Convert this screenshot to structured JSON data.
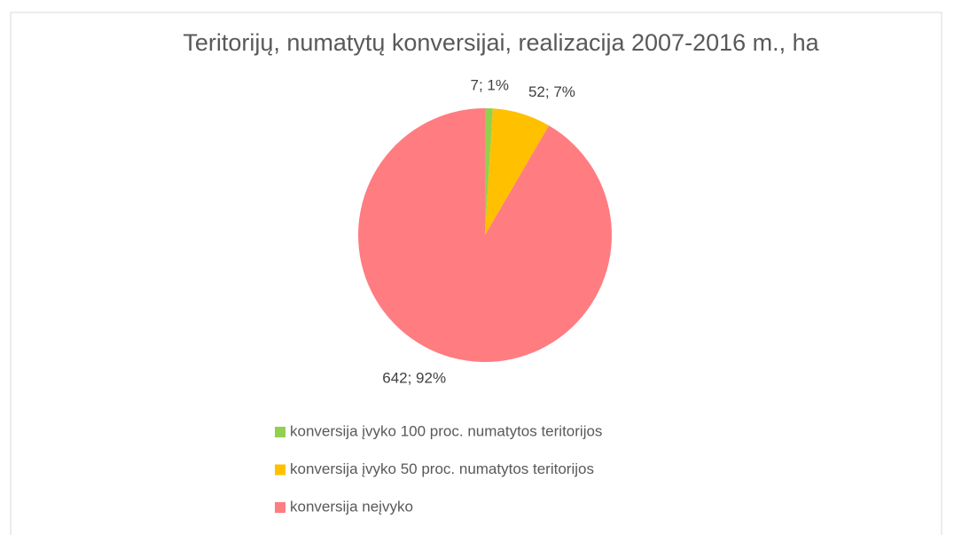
{
  "chart_data": {
    "type": "pie",
    "title": "Teritorijų, numatytų konversijai, realizacija 2007-2016 m., ha",
    "categories": [
      "konversija įvyko 100 proc. numatytos teritorijos",
      "konversija įvyko 50 proc. numatytos teritorijos",
      "konversija neįvyko"
    ],
    "values": [
      7,
      52,
      642
    ],
    "value_labels": [
      "7; 1%",
      "52; 7%",
      "642; 92%"
    ],
    "colors": [
      "#92d050",
      "#ffc000",
      "#ff7c80"
    ],
    "legend": "bottom"
  }
}
